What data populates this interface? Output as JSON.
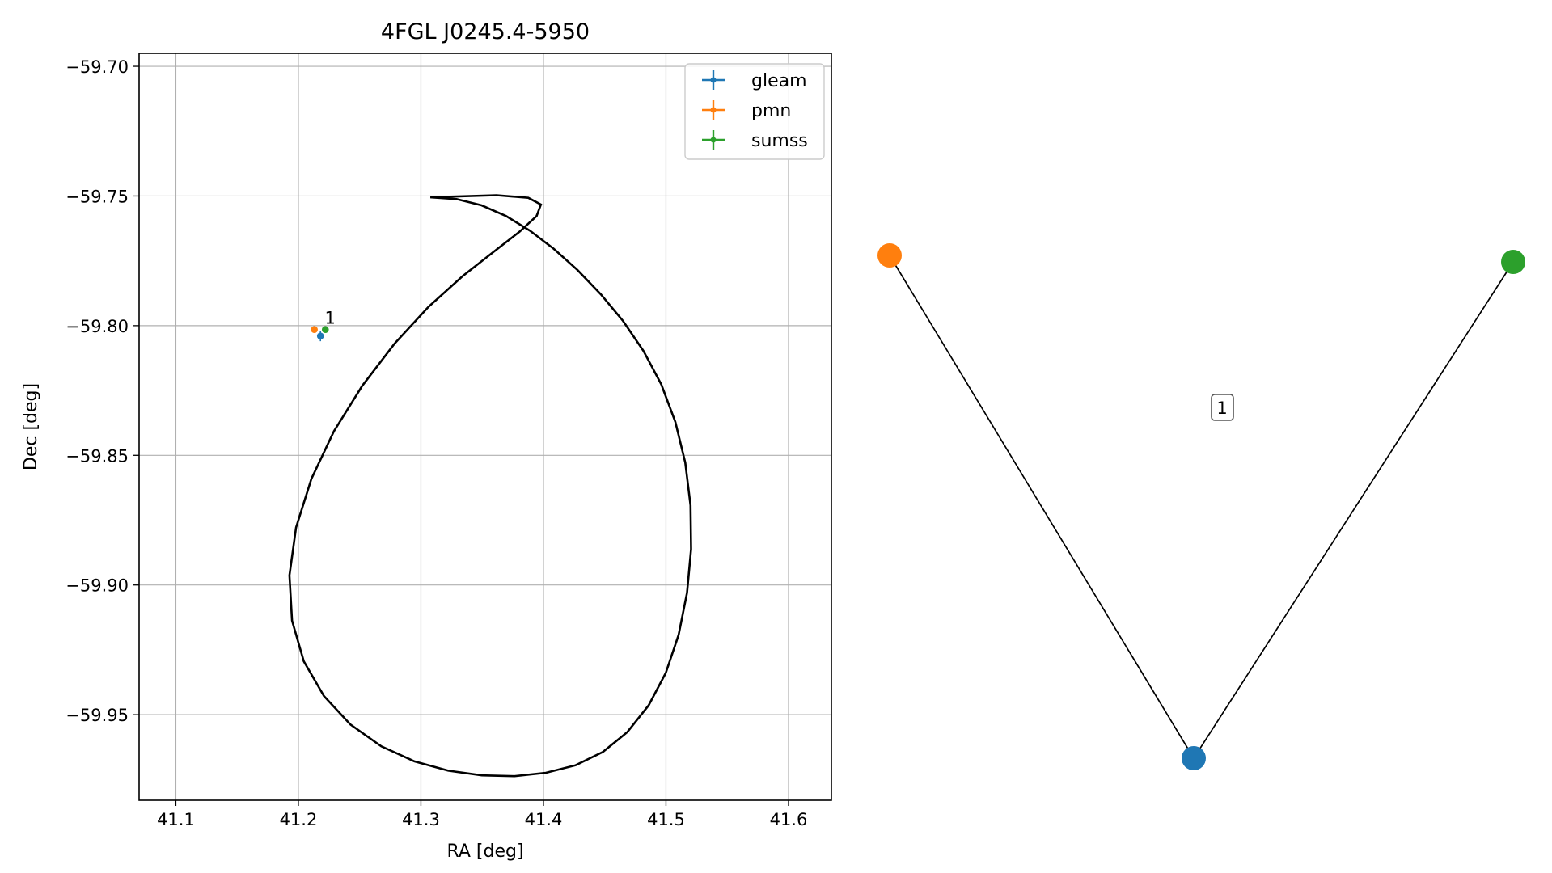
{
  "chart_data": [
    {
      "type": "scatter",
      "title": "4FGL J0245.4-5950",
      "xlabel": "RA [deg]",
      "ylabel": "Dec [deg]",
      "xlim": [
        41.07,
        41.635
      ],
      "ylim": [
        -59.983,
        -59.695
      ],
      "xticks": [
        41.1,
        41.2,
        41.3,
        41.4,
        41.5,
        41.6
      ],
      "xtick_labels": [
        "41.1",
        "41.2",
        "41.3",
        "41.4",
        "41.5",
        "41.6"
      ],
      "yticks": [
        -59.7,
        -59.75,
        -59.8,
        -59.85,
        -59.9,
        -59.95
      ],
      "ytick_labels": [
        "−59.70",
        "−59.75",
        "−59.80",
        "−59.85",
        "−59.90",
        "−59.95"
      ],
      "grid": true,
      "legend_position": "top-right",
      "series": [
        {
          "name": "gleam",
          "color": "#1f77b4",
          "x": [
            41.218
          ],
          "y": [
            -59.804
          ],
          "xerr": [
            0.002
          ],
          "yerr": [
            0.002
          ]
        },
        {
          "name": "pmn",
          "color": "#ff7f0e",
          "x": [
            41.213
          ],
          "y": [
            -59.8015
          ],
          "xerr": [
            0.001
          ],
          "yerr": [
            0.001
          ]
        },
        {
          "name": "sumss",
          "color": "#2ca02c",
          "x": [
            41.222
          ],
          "y": [
            -59.8015
          ],
          "xerr": [
            0.001
          ],
          "yerr": [
            0.001
          ]
        }
      ],
      "ellipse": {
        "color": "#000000",
        "points": [
          [
            41.3077,
            -59.7505
          ],
          [
            41.3291,
            -59.7512
          ],
          [
            41.3495,
            -59.7536
          ],
          [
            41.3694,
            -59.7577
          ],
          [
            41.389,
            -59.7634
          ],
          [
            41.4085,
            -59.7704
          ],
          [
            41.4279,
            -59.7786
          ],
          [
            41.4468,
            -59.7879
          ],
          [
            41.465,
            -59.7982
          ],
          [
            41.4817,
            -59.8098
          ],
          [
            41.4962,
            -59.8227
          ],
          [
            41.5077,
            -59.8372
          ],
          [
            41.5157,
            -59.8528
          ],
          [
            41.52,
            -59.8693
          ],
          [
            41.5205,
            -59.8862
          ],
          [
            41.5172,
            -59.903
          ],
          [
            41.5103,
            -59.9192
          ],
          [
            41.4998,
            -59.9339
          ],
          [
            41.4858,
            -59.9464
          ],
          [
            41.4685,
            -59.9567
          ],
          [
            41.4485,
            -59.9644
          ],
          [
            41.4262,
            -59.9695
          ],
          [
            41.402,
            -59.9724
          ],
          [
            41.3764,
            -59.9737
          ],
          [
            41.3497,
            -59.9734
          ],
          [
            41.3223,
            -59.9716
          ],
          [
            41.2947,
            -59.968
          ],
          [
            41.2677,
            -59.9622
          ],
          [
            41.2425,
            -59.9538
          ],
          [
            41.2208,
            -59.9428
          ],
          [
            41.2044,
            -59.9294
          ],
          [
            41.1948,
            -59.9137
          ],
          [
            41.1927,
            -59.8963
          ],
          [
            41.1981,
            -59.8778
          ],
          [
            41.2106,
            -59.8591
          ],
          [
            41.229,
            -59.8407
          ],
          [
            41.2521,
            -59.8232
          ],
          [
            41.2784,
            -59.807
          ],
          [
            41.3062,
            -59.7927
          ],
          [
            41.334,
            -59.7809
          ],
          [
            41.3597,
            -59.7714
          ],
          [
            41.3807,
            -59.7637
          ],
          [
            41.3944,
            -59.7577
          ],
          [
            41.3979,
            -59.7533
          ],
          [
            41.3876,
            -59.7507
          ],
          [
            41.3617,
            -59.7497
          ],
          [
            41.3077,
            -59.7505
          ]
        ]
      },
      "annotations": [
        {
          "text": "1",
          "x": 41.2215,
          "y": -59.7992
        }
      ]
    },
    {
      "type": "network",
      "nodes": [
        {
          "name": "pmn",
          "color": "#ff7f0e"
        },
        {
          "name": "gleam",
          "color": "#1f77b4"
        },
        {
          "name": "sumss",
          "color": "#2ca02c"
        }
      ],
      "edges": [
        {
          "source": "pmn",
          "target": "gleam"
        },
        {
          "source": "gleam",
          "target": "sumss"
        }
      ],
      "cluster_label": "1"
    }
  ]
}
